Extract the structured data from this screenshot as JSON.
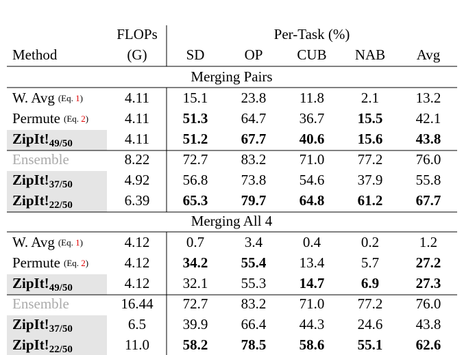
{
  "header": {
    "method": "Method",
    "flops": "FLOPs",
    "flops_unit": "(G)",
    "per_task": "Per-Task (%)",
    "tasks": [
      "SD",
      "OP",
      "CUB",
      "NAB",
      "Avg"
    ]
  },
  "sections": [
    {
      "title": "Merging Pairs",
      "rows": [
        {
          "method": "W. Avg",
          "note_open": "(Eq. ",
          "ref": "1",
          "note_close": ")",
          "flops": "4.11",
          "values": [
            "15.1",
            "23.8",
            "11.8",
            "2.1",
            "13.2"
          ],
          "bold": []
        },
        {
          "method": "Permute",
          "note_open": "(Eq. ",
          "ref": "2",
          "note_close": ")",
          "flops": "4.11",
          "values": [
            "51.3",
            "64.7",
            "36.7",
            "15.5",
            "42.1"
          ],
          "bold": [
            0,
            3
          ]
        },
        {
          "method": "ZipIt!",
          "sub": "49/50",
          "highlight": true,
          "flops": "4.11",
          "values": [
            "51.2",
            "67.7",
            "40.6",
            "15.6",
            "43.8"
          ],
          "bold": [
            0,
            1,
            2,
            3,
            4
          ]
        },
        {
          "method": "Ensemble",
          "muted": true,
          "flops": "8.22",
          "values": [
            "72.7",
            "83.2",
            "71.0",
            "77.2",
            "76.0"
          ],
          "bold": []
        },
        {
          "method": "ZipIt!",
          "sub": "37/50",
          "highlight": true,
          "flops": "4.92",
          "values": [
            "56.8",
            "73.8",
            "54.6",
            "37.9",
            "55.8"
          ],
          "bold": []
        },
        {
          "method": "ZipIt!",
          "sub": "22/50",
          "highlight": true,
          "flops": "6.39",
          "values": [
            "65.3",
            "79.7",
            "64.8",
            "61.2",
            "67.7"
          ],
          "bold": [
            0,
            1,
            2,
            3,
            4
          ]
        }
      ]
    },
    {
      "title": "Merging All 4",
      "rows": [
        {
          "method": "W. Avg",
          "note_open": "(Eq. ",
          "ref": "1",
          "note_close": ")",
          "flops": "4.12",
          "values": [
            "0.7",
            "3.4",
            "0.4",
            "0.2",
            "1.2"
          ],
          "bold": []
        },
        {
          "method": "Permute",
          "note_open": "(Eq. ",
          "ref": "2",
          "note_close": ")",
          "flops": "4.12",
          "values": [
            "34.2",
            "55.4",
            "13.4",
            "5.7",
            "27.2"
          ],
          "bold": [
            0,
            1,
            4
          ]
        },
        {
          "method": "ZipIt!",
          "sub": "49/50",
          "highlight": true,
          "flops": "4.12",
          "values": [
            "32.1",
            "55.3",
            "14.7",
            "6.9",
            "27.3"
          ],
          "bold": [
            2,
            3,
            4
          ]
        },
        {
          "method": "Ensemble",
          "muted": true,
          "flops": "16.44",
          "values": [
            "72.7",
            "83.2",
            "71.0",
            "77.2",
            "76.0"
          ],
          "bold": []
        },
        {
          "method": "ZipIt!",
          "sub": "37/50",
          "highlight": true,
          "flops": "6.5",
          "values": [
            "39.9",
            "66.4",
            "44.3",
            "24.6",
            "43.8"
          ],
          "bold": []
        },
        {
          "method": "ZipIt!",
          "sub": "22/50",
          "highlight": true,
          "flops": "11.0",
          "values": [
            "58.2",
            "78.5",
            "58.6",
            "55.1",
            "62.6"
          ],
          "bold": [
            0,
            1,
            2,
            3,
            4
          ]
        }
      ]
    }
  ]
}
